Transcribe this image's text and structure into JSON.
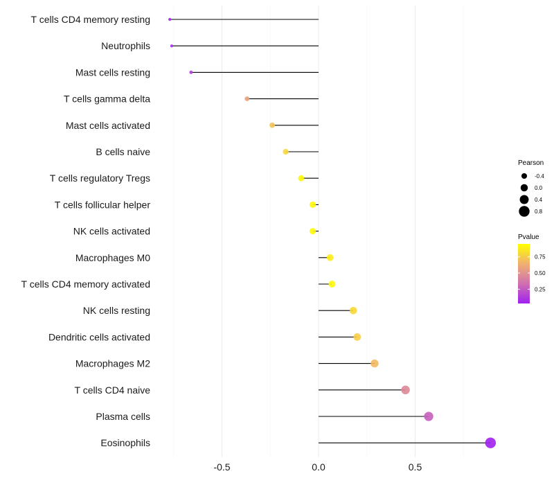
{
  "chart_data": {
    "type": "scatter",
    "subtype": "lollipop",
    "title": "",
    "xlabel": "",
    "ylabel": "",
    "xlim": [
      -0.82,
      0.93
    ],
    "xticks": [
      -0.5,
      0.0,
      0.5
    ],
    "xtick_labels": [
      "-0.5",
      "0.0",
      "0.5"
    ],
    "grid": true,
    "categories": [
      "T cells CD4 memory resting",
      "Neutrophils",
      "Mast cells resting",
      "T cells gamma delta",
      "Mast cells activated",
      "B cells naive",
      "T cells regulatory  Tregs ",
      "T cells follicular helper",
      "NK cells activated",
      "Macrophages M0",
      "T cells CD4 memory activated",
      "NK cells resting",
      "Dendritic cells activated",
      "Macrophages M2",
      "T cells CD4 naive",
      "Plasma cells",
      "Eosinophils"
    ],
    "pearson": [
      -0.77,
      -0.76,
      -0.66,
      -0.37,
      -0.24,
      -0.17,
      -0.09,
      -0.03,
      -0.03,
      0.06,
      0.07,
      0.18,
      0.2,
      0.29,
      0.45,
      0.57,
      0.89
    ],
    "pvalue": [
      0.05,
      0.06,
      0.15,
      0.58,
      0.72,
      0.8,
      0.92,
      0.93,
      0.93,
      0.88,
      0.93,
      0.8,
      0.76,
      0.68,
      0.45,
      0.27,
      0.03
    ],
    "legend_size": {
      "title": "Pearson",
      "values": [
        -0.4,
        0.0,
        0.4,
        0.8
      ],
      "labels": [
        "-0.4",
        "0.0",
        "0.4",
        "0.8"
      ]
    },
    "legend_color": {
      "title": "Pvalue",
      "range": [
        0.03,
        0.95
      ],
      "ticks": [
        0.25,
        0.5,
        0.75
      ],
      "labels": [
        "0.25",
        "0.50",
        "0.75"
      ],
      "colors": [
        "#a020f0",
        "#d070b0",
        "#f0b070",
        "#ffff00"
      ]
    },
    "legend_placement": "right"
  }
}
